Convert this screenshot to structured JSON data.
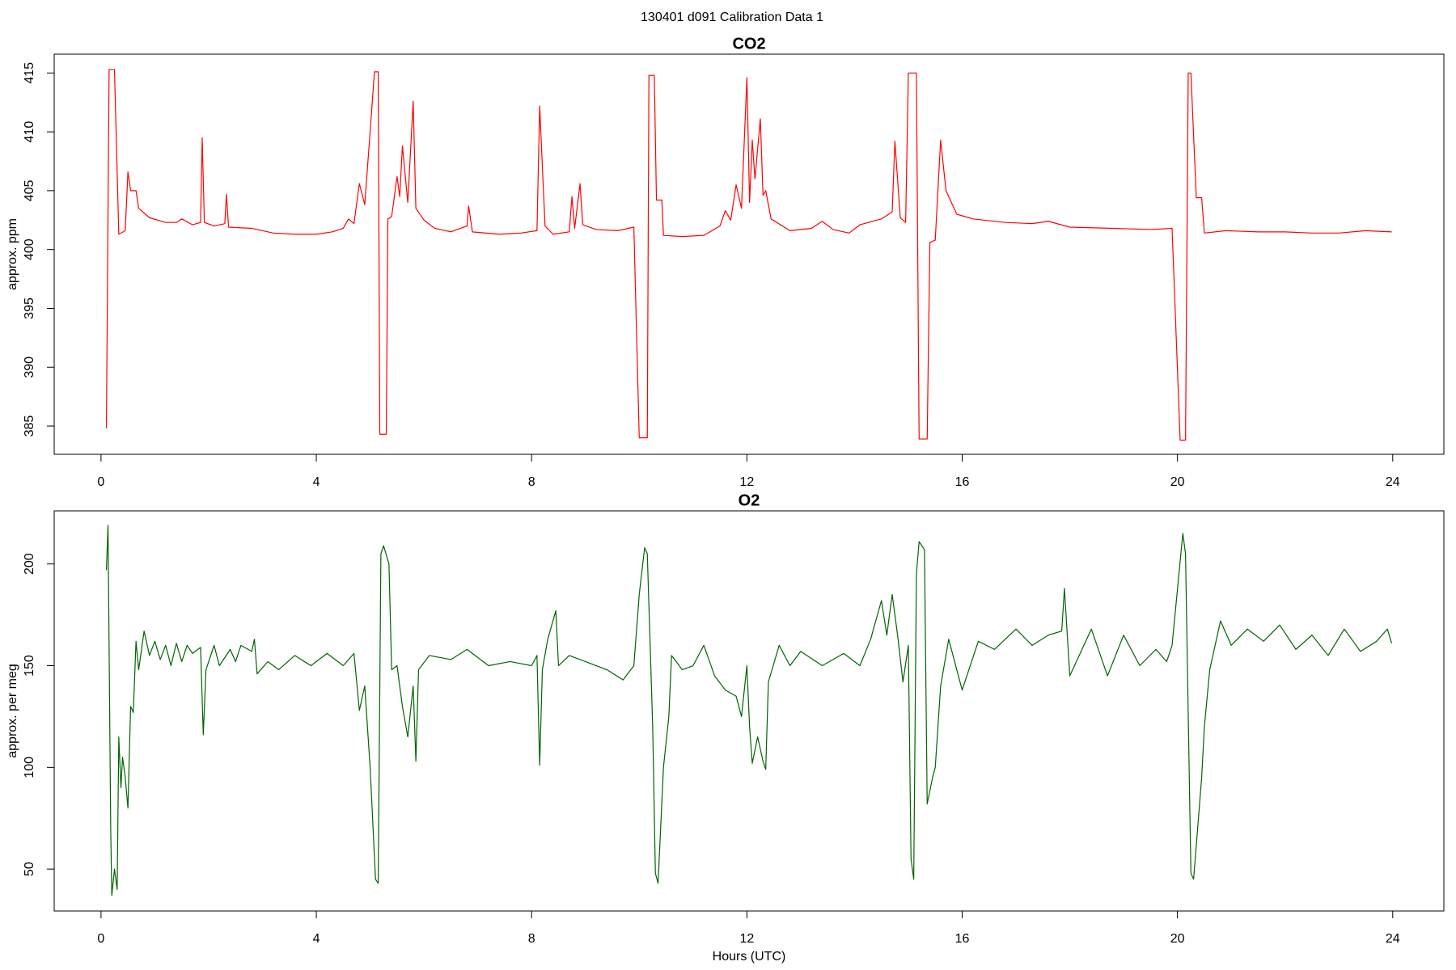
{
  "title": "130401   d091   Calibration Data 1",
  "chart_data": [
    {
      "type": "line",
      "title": "CO2",
      "y_label": "approx. ppm",
      "color": "#ff0000",
      "xlim": [
        -0.87,
        24.95
      ],
      "xticks": [
        0,
        4,
        8,
        12,
        16,
        20,
        24
      ],
      "ylim": [
        382.6,
        416.6
      ],
      "yticks": [
        385,
        390,
        395,
        400,
        405,
        410,
        415
      ],
      "x": [
        0.1,
        0.15,
        0.25,
        0.33,
        0.45,
        0.5,
        0.55,
        0.65,
        0.7,
        0.9,
        1.2,
        1.4,
        1.5,
        1.7,
        1.85,
        1.88,
        1.92,
        2.1,
        2.3,
        2.33,
        2.37,
        2.8,
        3.2,
        3.6,
        4.0,
        4.3,
        4.5,
        4.6,
        4.7,
        4.8,
        4.9,
        5.0,
        5.08,
        5.15,
        5.18,
        5.3,
        5.33,
        5.4,
        5.5,
        5.55,
        5.6,
        5.7,
        5.8,
        5.85,
        6.0,
        6.2,
        6.5,
        6.8,
        6.83,
        6.9,
        7.4,
        7.8,
        8.1,
        8.15,
        8.25,
        8.4,
        8.7,
        8.75,
        8.8,
        8.9,
        8.95,
        9.2,
        9.6,
        9.9,
        10.0,
        10.15,
        10.18,
        10.28,
        10.32,
        10.42,
        10.45,
        10.8,
        11.2,
        11.5,
        11.6,
        11.7,
        11.8,
        11.9,
        12.0,
        12.05,
        12.1,
        12.15,
        12.25,
        12.3,
        12.35,
        12.45,
        12.8,
        13.2,
        13.4,
        13.6,
        13.9,
        14.1,
        14.5,
        14.7,
        14.75,
        14.85,
        14.95,
        15.0,
        15.15,
        15.2,
        15.35,
        15.4,
        15.5,
        15.6,
        15.7,
        15.9,
        16.2,
        16.8,
        17.3,
        17.6,
        18.0,
        18.8,
        19.5,
        19.9,
        20.05,
        20.15,
        20.2,
        20.25,
        20.35,
        20.45,
        20.5,
        20.9,
        21.5,
        22,
        22.5,
        23,
        23.5,
        23.98
      ],
      "values": [
        384.8,
        415.3,
        415.3,
        401.3,
        401.6,
        406.6,
        405,
        405,
        403.5,
        402.7,
        402.3,
        402.3,
        402.6,
        402.1,
        402.3,
        409.5,
        402.3,
        402,
        402.2,
        404.7,
        401.9,
        401.8,
        401.4,
        401.3,
        401.3,
        401.5,
        401.8,
        402.6,
        402.2,
        405.6,
        403.8,
        410,
        415.1,
        415.1,
        384.3,
        384.3,
        402.6,
        402.8,
        406.2,
        404.5,
        408.8,
        404,
        412.6,
        403.5,
        402.5,
        401.8,
        401.5,
        402,
        403.7,
        401.5,
        401.3,
        401.4,
        401.6,
        412.2,
        402,
        401.3,
        401.5,
        404.5,
        401.8,
        405.6,
        402.1,
        401.7,
        401.6,
        401.9,
        384,
        384,
        414.8,
        414.8,
        404.2,
        404.2,
        401.2,
        401.1,
        401.2,
        402,
        403.3,
        402.5,
        405.5,
        403.5,
        414.6,
        404,
        409.3,
        406,
        411.1,
        404.6,
        405,
        402.6,
        401.6,
        401.8,
        402.4,
        401.7,
        401.4,
        402.1,
        402.6,
        403.2,
        409.2,
        402.7,
        402.3,
        415,
        415,
        383.9,
        383.9,
        400.6,
        400.8,
        409.3,
        405,
        403,
        402.6,
        402.3,
        402.2,
        402.4,
        401.9,
        401.8,
        401.7,
        401.8,
        383.8,
        383.8,
        415,
        415,
        404.4,
        404.4,
        401.4,
        401.6,
        401.5,
        401.5,
        401.4,
        401.4,
        401.6,
        401.5
      ]
    },
    {
      "type": "line",
      "title": "O2",
      "y_label": "approx. per meg",
      "x_label": "Hours (UTC)",
      "color": "#006400",
      "xlim": [
        -0.87,
        24.95
      ],
      "xticks": [
        0,
        4,
        8,
        12,
        16,
        20,
        24
      ],
      "ylim": [
        29.4,
        226.1
      ],
      "yticks": [
        50,
        100,
        150,
        200
      ],
      "x": [
        0.1,
        0.13,
        0.18,
        0.2,
        0.25,
        0.3,
        0.33,
        0.37,
        0.4,
        0.45,
        0.5,
        0.55,
        0.6,
        0.65,
        0.7,
        0.8,
        0.9,
        1.0,
        1.1,
        1.2,
        1.3,
        1.4,
        1.5,
        1.6,
        1.7,
        1.85,
        1.9,
        1.95,
        2.1,
        2.2,
        2.4,
        2.5,
        2.6,
        2.8,
        2.85,
        2.9,
        3.1,
        3.3,
        3.6,
        3.9,
        4.2,
        4.5,
        4.7,
        4.8,
        4.9,
        5.0,
        5.1,
        5.15,
        5.2,
        5.25,
        5.35,
        5.4,
        5.5,
        5.6,
        5.7,
        5.8,
        5.85,
        5.9,
        6.1,
        6.5,
        6.8,
        7.2,
        7.6,
        8.0,
        8.1,
        8.15,
        8.2,
        8.3,
        8.45,
        8.5,
        8.7,
        9.0,
        9.4,
        9.7,
        9.9,
        10.0,
        10.1,
        10.15,
        10.25,
        10.3,
        10.35,
        10.45,
        10.55,
        10.6,
        10.8,
        11.0,
        11.2,
        11.4,
        11.6,
        11.8,
        11.9,
        12.0,
        12.05,
        12.1,
        12.2,
        12.3,
        12.35,
        12.4,
        12.6,
        12.8,
        13.0,
        13.4,
        13.8,
        14.1,
        14.3,
        14.5,
        14.6,
        14.7,
        14.8,
        14.9,
        15.0,
        15.05,
        15.1,
        15.15,
        15.2,
        15.3,
        15.35,
        15.45,
        15.5,
        15.6,
        15.75,
        16.0,
        16.3,
        16.6,
        17.0,
        17.3,
        17.6,
        17.85,
        17.9,
        18.0,
        18.4,
        18.7,
        19.0,
        19.3,
        19.6,
        19.8,
        19.9,
        20.1,
        20.15,
        20.25,
        20.3,
        20.45,
        20.5,
        20.6,
        20.8,
        21.0,
        21.3,
        21.6,
        21.9,
        22.2,
        22.5,
        22.8,
        23.1,
        23.4,
        23.7,
        23.9,
        23.98
      ],
      "values": [
        197,
        219,
        70,
        37,
        50,
        40,
        115,
        90,
        105,
        95,
        80,
        130,
        127,
        162,
        148,
        167,
        155,
        162,
        153,
        160,
        150,
        161,
        152,
        160,
        156,
        159,
        116,
        148,
        160,
        150,
        158,
        152,
        160,
        157,
        163,
        146,
        152,
        148,
        155,
        150,
        156,
        150,
        156,
        128,
        140,
        100,
        45,
        43,
        205,
        209,
        200,
        148,
        150,
        130,
        115,
        140,
        103,
        148,
        155,
        153,
        158,
        150,
        152,
        150,
        155,
        101,
        148,
        163,
        177,
        150,
        155,
        152,
        148,
        143,
        150,
        185,
        208,
        205,
        120,
        48,
        43,
        100,
        125,
        155,
        148,
        150,
        160,
        145,
        138,
        135,
        125,
        150,
        120,
        102,
        115,
        103,
        99,
        142,
        160,
        150,
        157,
        150,
        156,
        150,
        163,
        182,
        165,
        185,
        165,
        142,
        160,
        55,
        45,
        195,
        211,
        207,
        82,
        95,
        100,
        140,
        163,
        138,
        162,
        158,
        168,
        160,
        165,
        167,
        188,
        145,
        168,
        145,
        165,
        150,
        158,
        152,
        160,
        215,
        205,
        48,
        45,
        95,
        120,
        148,
        172,
        160,
        168,
        162,
        170,
        158,
        165,
        155,
        168,
        157,
        162,
        168,
        161
      ]
    }
  ]
}
